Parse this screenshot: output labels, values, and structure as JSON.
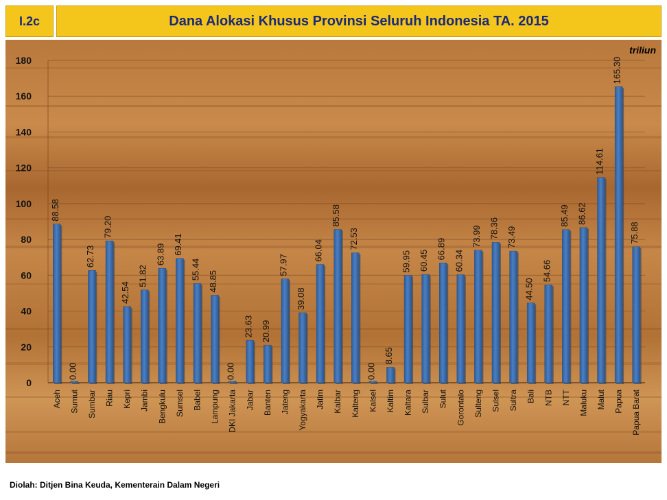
{
  "header": {
    "code": "I.2c",
    "title": "Dana Alokasi Khusus Provinsi Seluruh Indonesia TA. 2015"
  },
  "unit": "triliun",
  "footer": "Diolah: Ditjen Bina Keuda, Kementerain Dalam Negeri",
  "colors": {
    "bar": "#3f74b8",
    "bar_dark": "#2c5590",
    "header": "#f4c51b",
    "title_text": "#1a2a7a"
  },
  "chart_data": {
    "type": "bar",
    "categories": [
      "Aceh",
      "Sumut",
      "Sumbar",
      "Riau",
      "Kepri",
      "Jambi",
      "Bengkulu",
      "Sumsel",
      "Babel",
      "Lampung",
      "DKI Jakarta",
      "Jabar",
      "Banten",
      "Jateng",
      "Yogyakarta",
      "Jatim",
      "Kalbar",
      "Kalteng",
      "Kalsel",
      "Kaltim",
      "Kaltara",
      "Sulbar",
      "Sulut",
      "Gorontalo",
      "Sulteng",
      "Sulsel",
      "Sultra",
      "Bali",
      "NTB",
      "NTT",
      "Maluku",
      "Malut",
      "Papua",
      "Papua Barat"
    ],
    "values": [
      88.58,
      0.0,
      62.73,
      79.2,
      42.54,
      51.82,
      63.89,
      69.41,
      55.44,
      48.85,
      0.0,
      23.63,
      20.99,
      57.97,
      39.08,
      66.04,
      85.58,
      72.53,
      0.0,
      8.65,
      59.95,
      60.45,
      66.89,
      60.34,
      73.99,
      78.36,
      73.49,
      44.5,
      54.66,
      85.49,
      86.62,
      114.61,
      165.3,
      75.88
    ],
    "labels": [
      "88.58",
      "0.00",
      "62.73",
      "79.20",
      "42.54",
      "51.82",
      "63.89",
      "69.41",
      "55.44",
      "48.85",
      "0.00",
      "23.63",
      "20.99",
      "57.97",
      "39.08",
      "66.04",
      "85.58",
      "72.53",
      "0.00",
      "8.65",
      "59.95",
      "60.45",
      "66.89",
      "60.34",
      "73.99",
      "78.36",
      "73.49",
      "44.50",
      "54.66",
      "85.49",
      "86.62",
      "114.61",
      "165.30",
      "75.88"
    ],
    "yticks": [
      "0",
      "20",
      "40",
      "60",
      "80",
      "100",
      "120",
      "140",
      "160",
      "180"
    ],
    "ylim": [
      0,
      180
    ],
    "grid": true,
    "legend": "none"
  }
}
